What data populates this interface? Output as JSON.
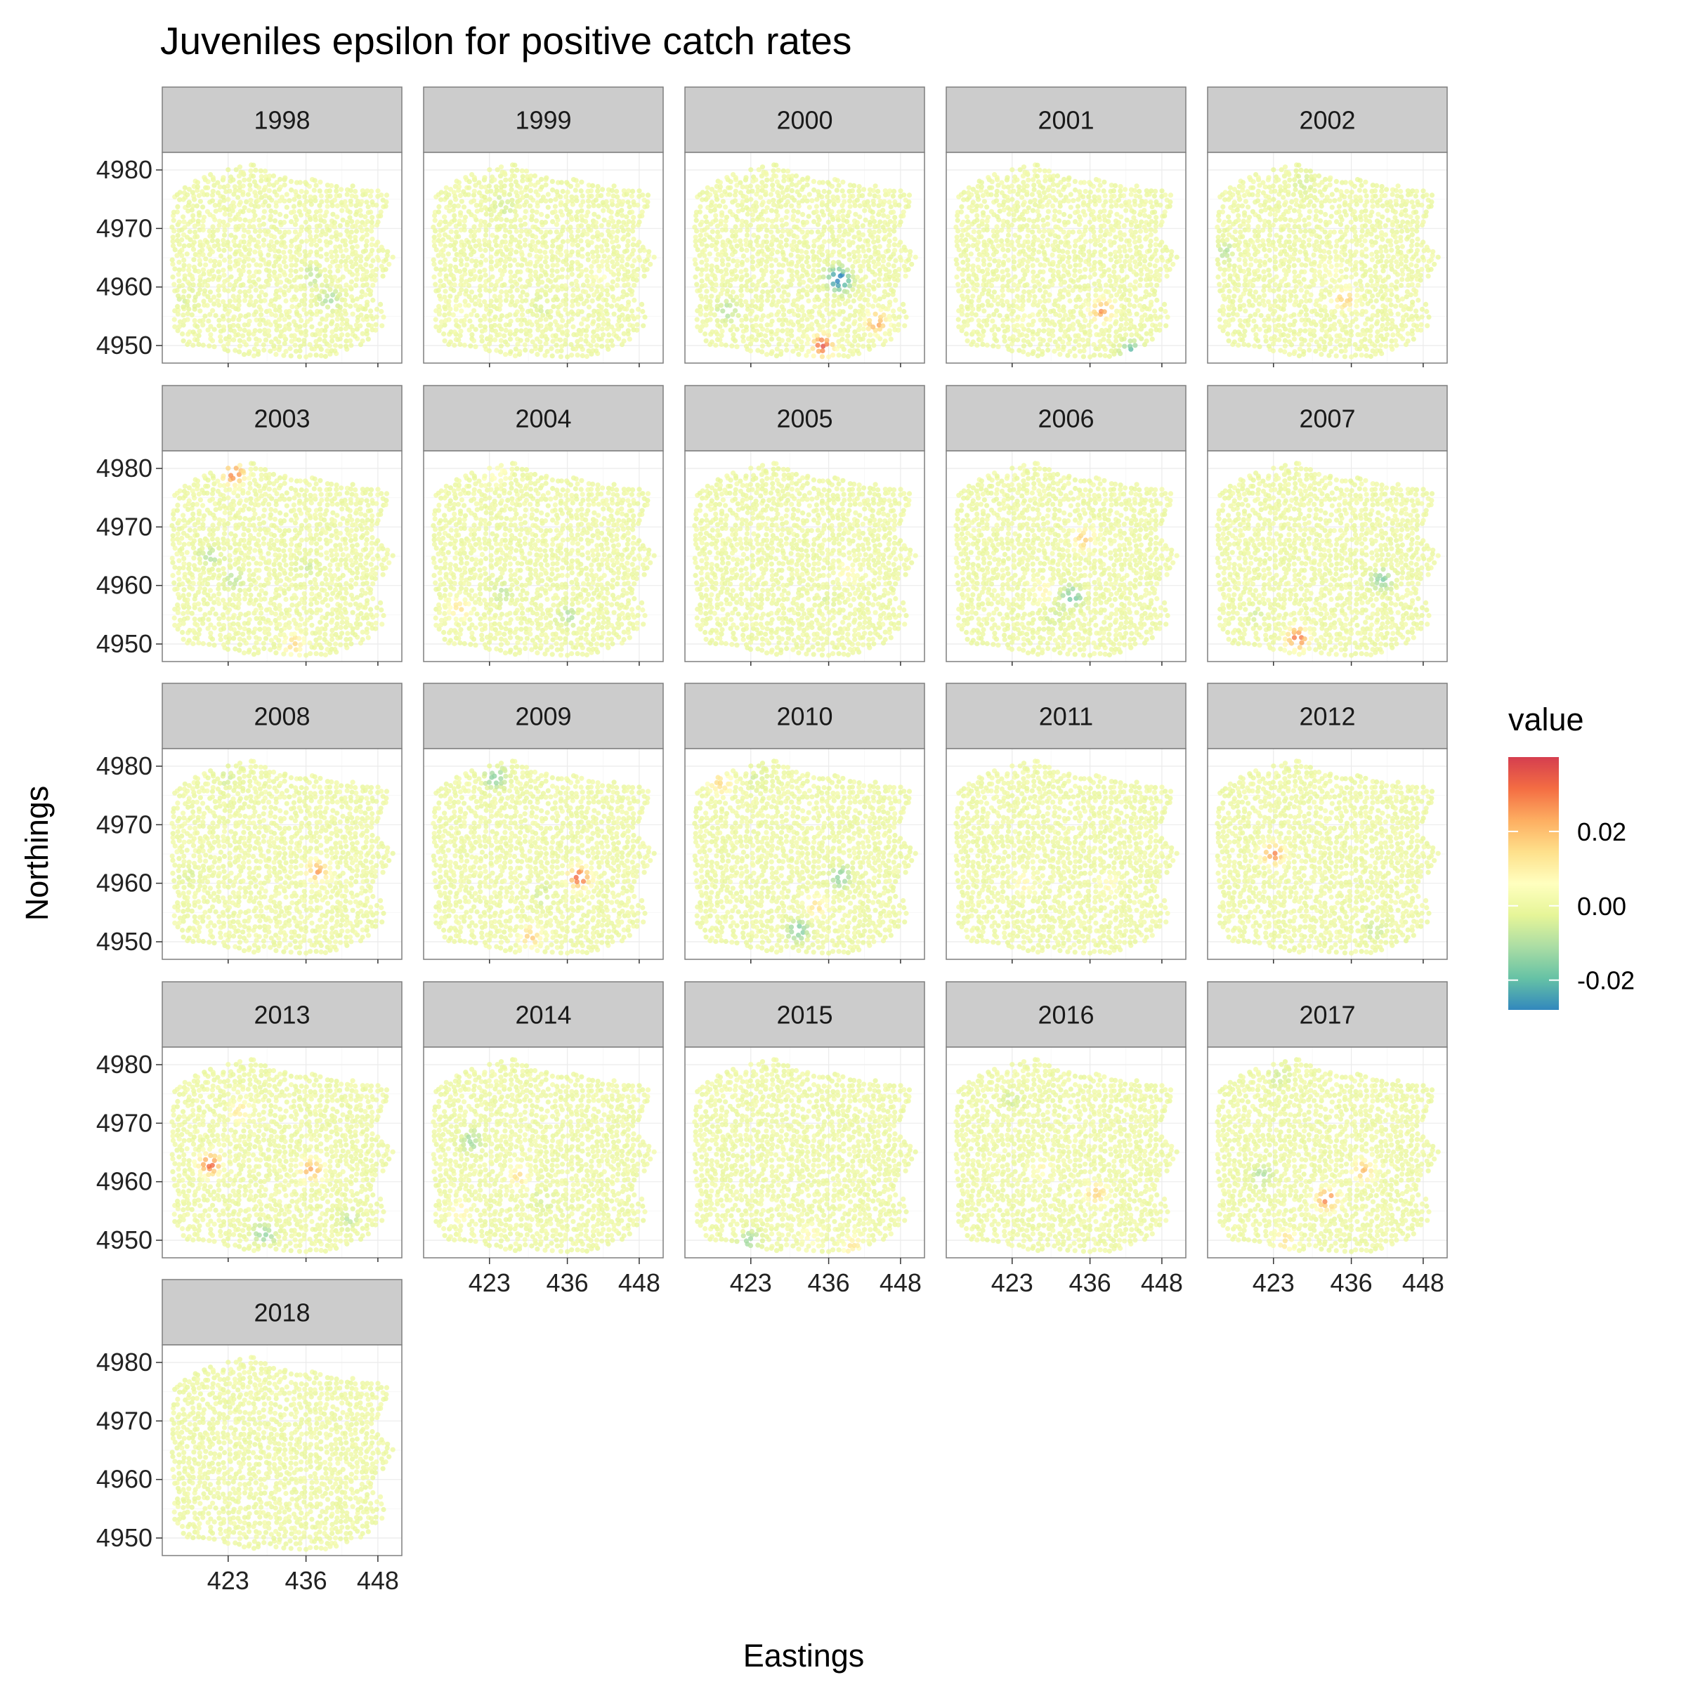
{
  "title": "Juveniles epsilon for positive catch rates",
  "chart_data": {
    "type": "scatter",
    "title": "Juveniles epsilon for positive catch rates",
    "xlabel": "Eastings",
    "ylabel": "Northings",
    "x_ticks": [
      "423",
      "436",
      "448"
    ],
    "y_ticks": [
      "4950",
      "4960",
      "4970",
      "4980"
    ],
    "x_tick_values": [
      423,
      436,
      448
    ],
    "y_tick_values": [
      4950,
      4960,
      4970,
      4980
    ],
    "xlim": [
      412,
      452
    ],
    "ylim": [
      4947,
      4983
    ],
    "grid": true,
    "legend": {
      "title": "value",
      "position": "right",
      "labels": [
        "0.02",
        "0.00",
        "-0.02"
      ],
      "label_values": [
        0.02,
        0.0,
        -0.02
      ],
      "range": [
        -0.028,
        0.04
      ],
      "colors": [
        "#3288bd",
        "#66c2a5",
        "#abdda4",
        "#e6f598",
        "#ffffbf",
        "#fee08b",
        "#fdae61",
        "#f46d43",
        "#d53e4f"
      ]
    },
    "panels": [
      {
        "year": "1998",
        "hotspots": [
          {
            "x": 437,
            "y": 4962,
            "v": -0.008
          },
          {
            "x": 440,
            "y": 4958,
            "v": -0.01
          },
          {
            "x": 416,
            "y": 4958,
            "v": -0.004
          }
        ]
      },
      {
        "year": "1999",
        "hotspots": [
          {
            "x": 425,
            "y": 4974,
            "v": -0.006
          },
          {
            "x": 442,
            "y": 4962,
            "v": 0.006
          },
          {
            "x": 432,
            "y": 4957,
            "v": -0.005
          },
          {
            "x": 418,
            "y": 4956,
            "v": 0.004
          }
        ]
      },
      {
        "year": "2000",
        "hotspots": [
          {
            "x": 438,
            "y": 4961,
            "v": -0.027
          },
          {
            "x": 435,
            "y": 4950,
            "v": 0.036
          },
          {
            "x": 444,
            "y": 4954,
            "v": 0.025
          },
          {
            "x": 419,
            "y": 4956,
            "v": -0.01
          },
          {
            "x": 437,
            "y": 4962,
            "v": -0.012
          }
        ]
      },
      {
        "year": "2001",
        "hotspots": [
          {
            "x": 438,
            "y": 4956,
            "v": 0.026
          },
          {
            "x": 443,
            "y": 4949,
            "v": -0.02
          },
          {
            "x": 425,
            "y": 4955,
            "v": 0.004
          }
        ]
      },
      {
        "year": "2002",
        "hotspots": [
          {
            "x": 428,
            "y": 4978,
            "v": -0.005
          },
          {
            "x": 435,
            "y": 4958,
            "v": 0.018
          },
          {
            "x": 415,
            "y": 4966,
            "v": -0.008
          },
          {
            "x": 433,
            "y": 4963,
            "v": 0.005
          }
        ]
      },
      {
        "year": "2003",
        "hotspots": [
          {
            "x": 424,
            "y": 4979,
            "v": 0.03
          },
          {
            "x": 434,
            "y": 4950,
            "v": 0.016
          },
          {
            "x": 420,
            "y": 4965,
            "v": -0.01
          },
          {
            "x": 424,
            "y": 4961,
            "v": -0.008
          },
          {
            "x": 436,
            "y": 4963,
            "v": -0.006
          }
        ]
      },
      {
        "year": "2004",
        "hotspots": [
          {
            "x": 424,
            "y": 4979,
            "v": 0.008
          },
          {
            "x": 418,
            "y": 4956,
            "v": 0.014
          },
          {
            "x": 436,
            "y": 4955,
            "v": -0.01
          },
          {
            "x": 425,
            "y": 4959,
            "v": -0.008
          }
        ]
      },
      {
        "year": "2005",
        "hotspots": [
          {
            "x": 439,
            "y": 4962,
            "v": 0.008
          },
          {
            "x": 436,
            "y": 4958,
            "v": -0.004
          }
        ]
      },
      {
        "year": "2006",
        "hotspots": [
          {
            "x": 435,
            "y": 4968,
            "v": 0.018
          },
          {
            "x": 433,
            "y": 4958,
            "v": -0.02
          },
          {
            "x": 428,
            "y": 4959,
            "v": 0.01
          },
          {
            "x": 430,
            "y": 4955,
            "v": -0.006
          }
        ]
      },
      {
        "year": "2007",
        "hotspots": [
          {
            "x": 441,
            "y": 4961,
            "v": -0.016
          },
          {
            "x": 427,
            "y": 4951,
            "v": 0.034
          },
          {
            "x": 420,
            "y": 4955,
            "v": -0.004
          }
        ]
      },
      {
        "year": "2008",
        "hotspots": [
          {
            "x": 438,
            "y": 4962,
            "v": 0.025
          },
          {
            "x": 423,
            "y": 4978,
            "v": -0.006
          },
          {
            "x": 416,
            "y": 4961,
            "v": -0.004
          }
        ]
      },
      {
        "year": "2009",
        "hotspots": [
          {
            "x": 424,
            "y": 4978,
            "v": -0.015
          },
          {
            "x": 438,
            "y": 4961,
            "v": 0.036
          },
          {
            "x": 430,
            "y": 4951,
            "v": 0.018
          },
          {
            "x": 432,
            "y": 4958,
            "v": -0.006
          }
        ]
      },
      {
        "year": "2010",
        "hotspots": [
          {
            "x": 418,
            "y": 4977,
            "v": 0.016
          },
          {
            "x": 438,
            "y": 4961,
            "v": -0.016
          },
          {
            "x": 434,
            "y": 4956,
            "v": 0.014
          },
          {
            "x": 431,
            "y": 4952,
            "v": -0.018
          },
          {
            "x": 424,
            "y": 4978,
            "v": -0.005
          }
        ]
      },
      {
        "year": "2011",
        "hotspots": [
          {
            "x": 425,
            "y": 4960,
            "v": 0.01
          },
          {
            "x": 439,
            "y": 4960,
            "v": 0.008
          }
        ]
      },
      {
        "year": "2012",
        "hotspots": [
          {
            "x": 423,
            "y": 4965,
            "v": 0.028
          },
          {
            "x": 448,
            "y": 4949,
            "v": -0.018
          },
          {
            "x": 440,
            "y": 4952,
            "v": -0.006
          }
        ]
      },
      {
        "year": "2013",
        "hotspots": [
          {
            "x": 420,
            "y": 4963,
            "v": 0.032
          },
          {
            "x": 437,
            "y": 4962,
            "v": 0.026
          },
          {
            "x": 429,
            "y": 4951,
            "v": -0.014
          },
          {
            "x": 425,
            "y": 4972,
            "v": 0.012
          },
          {
            "x": 443,
            "y": 4954,
            "v": -0.008
          }
        ]
      },
      {
        "year": "2014",
        "hotspots": [
          {
            "x": 420,
            "y": 4967,
            "v": -0.012
          },
          {
            "x": 428,
            "y": 4961,
            "v": 0.014
          },
          {
            "x": 418,
            "y": 4955,
            "v": 0.01
          },
          {
            "x": 432,
            "y": 4957,
            "v": -0.006
          }
        ]
      },
      {
        "year": "2015",
        "hotspots": [
          {
            "x": 423,
            "y": 4950,
            "v": -0.012
          },
          {
            "x": 433,
            "y": 4951,
            "v": 0.008
          },
          {
            "x": 440,
            "y": 4949,
            "v": 0.012
          }
        ]
      },
      {
        "year": "2016",
        "hotspots": [
          {
            "x": 437,
            "y": 4958,
            "v": 0.018
          },
          {
            "x": 423,
            "y": 4974,
            "v": -0.006
          },
          {
            "x": 428,
            "y": 4962,
            "v": 0.008
          }
        ]
      },
      {
        "year": "2017",
        "hotspots": [
          {
            "x": 432,
            "y": 4957,
            "v": 0.03
          },
          {
            "x": 438,
            "y": 4962,
            "v": 0.02
          },
          {
            "x": 425,
            "y": 4950,
            "v": 0.014
          },
          {
            "x": 421,
            "y": 4961,
            "v": -0.01
          },
          {
            "x": 424,
            "y": 4978,
            "v": -0.006
          }
        ]
      },
      {
        "year": "2018",
        "hotspots": []
      }
    ]
  }
}
